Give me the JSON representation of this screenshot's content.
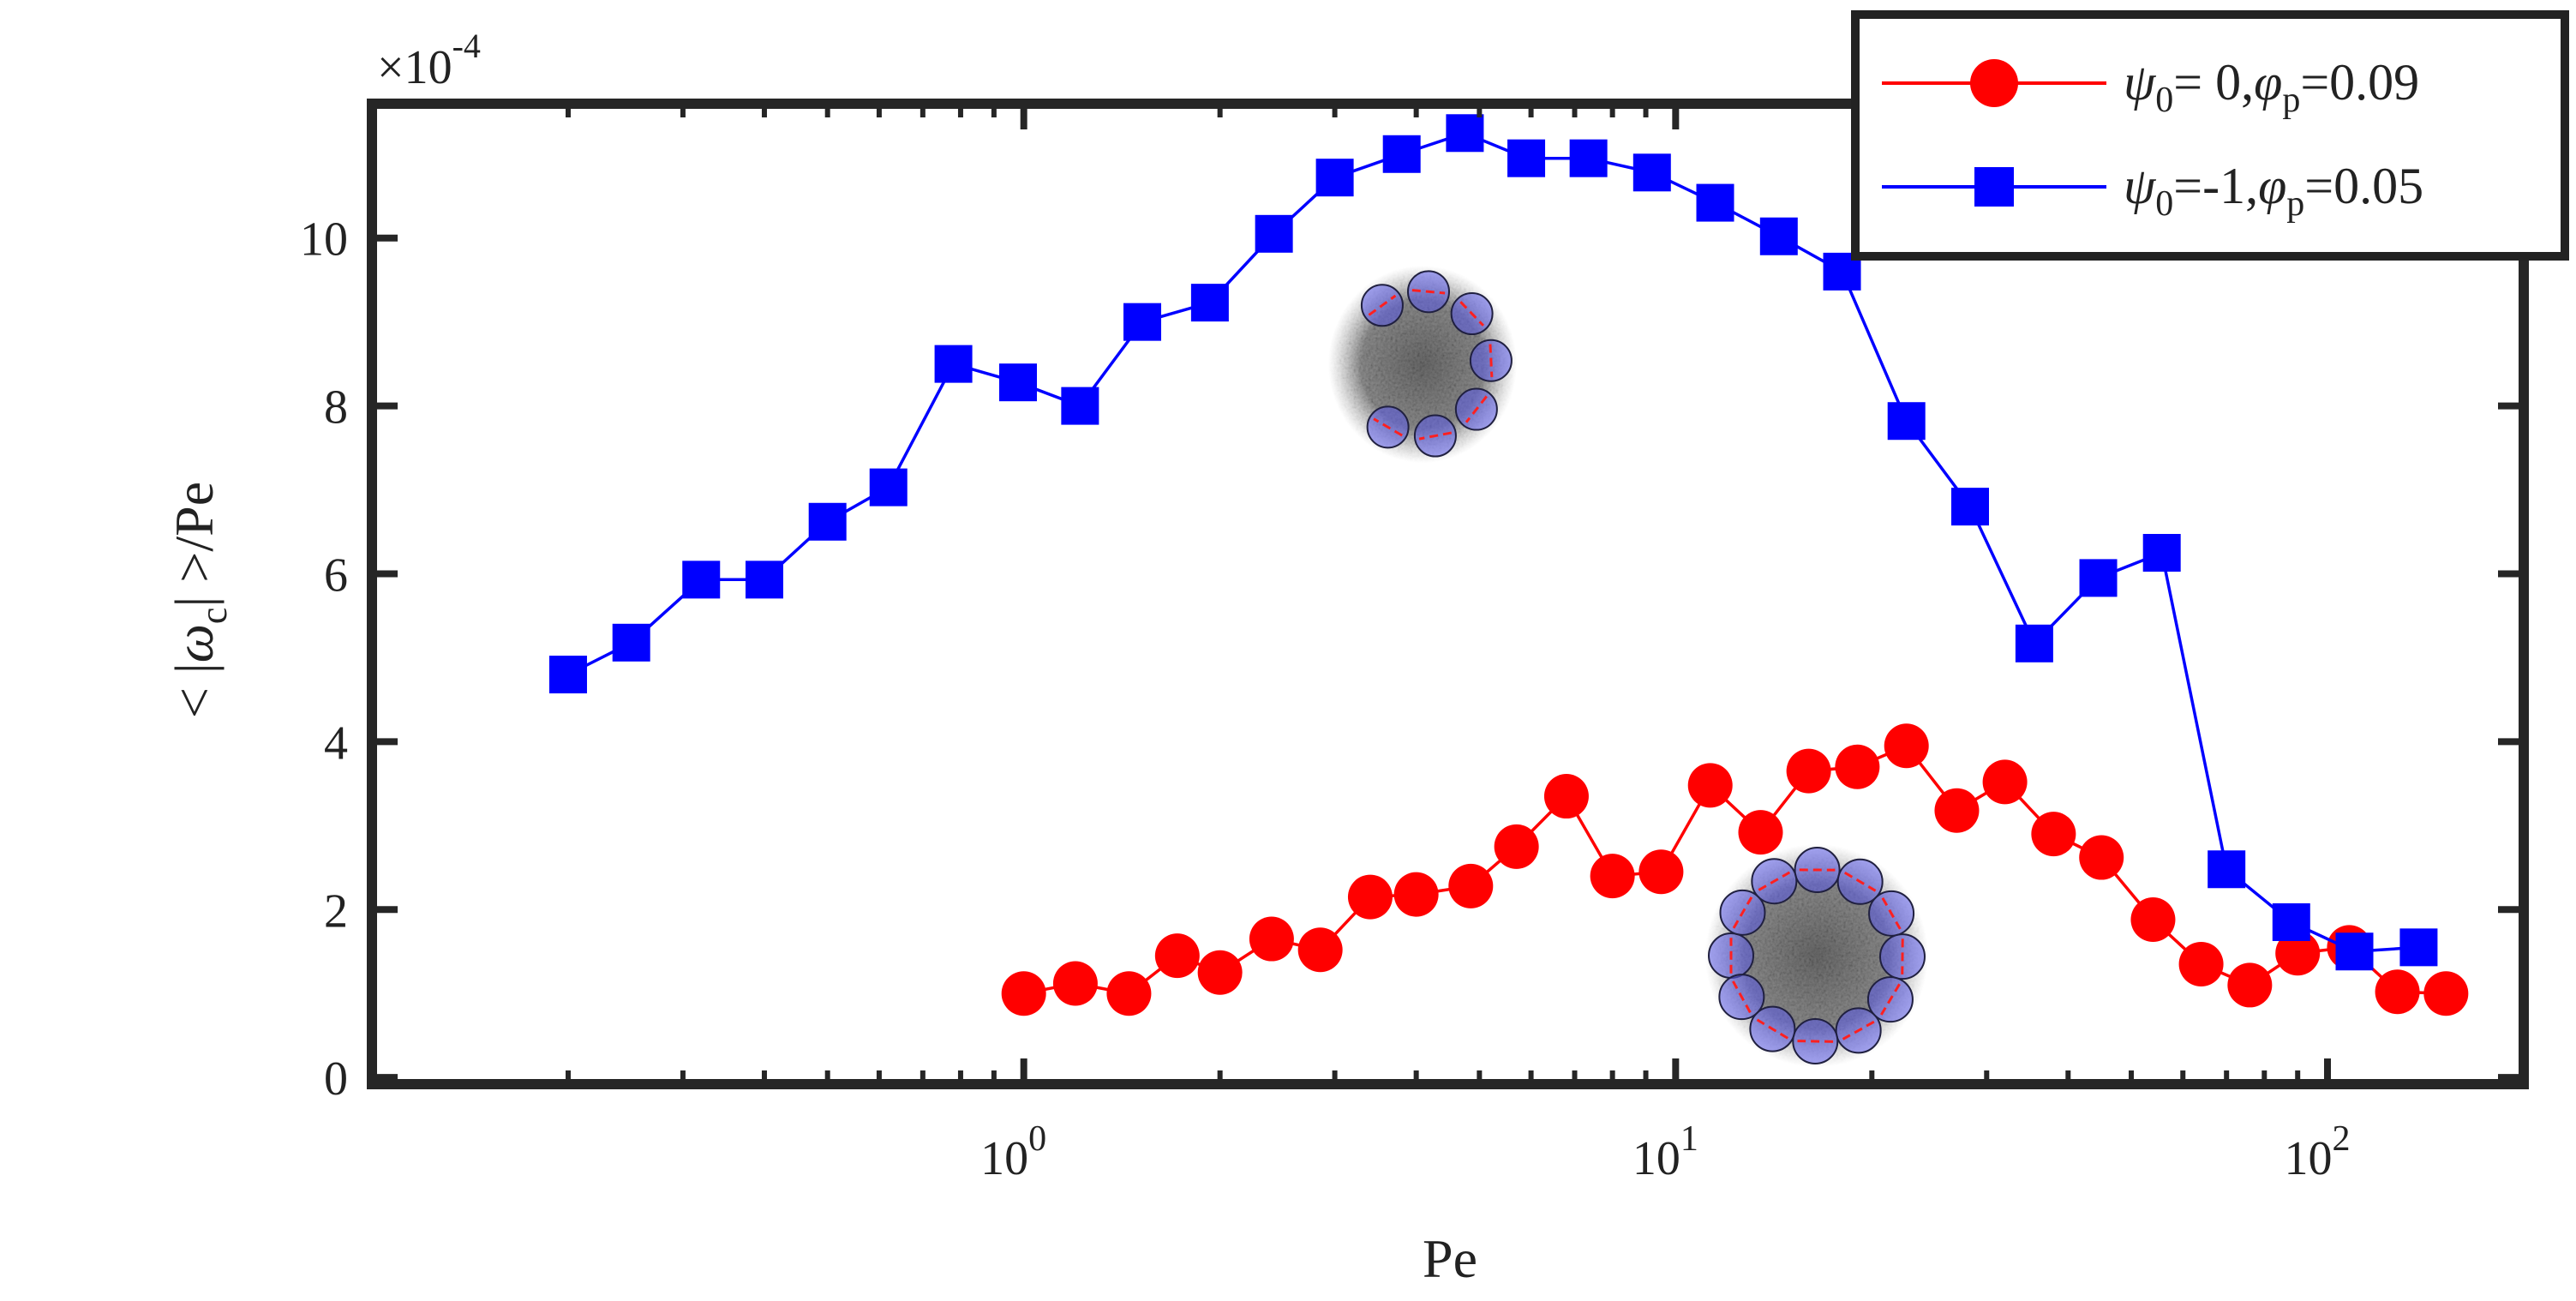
{
  "chart_data": {
    "type": "line",
    "xscale": "log",
    "xlabel": "Pe",
    "ylabel": "< |ω_c| >/Pe",
    "ylabel_parts": {
      "prefix": "< |",
      "symbol": "ω",
      "subscript": "c",
      "suffix": "| >/Pe"
    },
    "y_multiplier": "×10",
    "y_multiplier_exp": "-4",
    "xlim": [
      0.1,
      200
    ],
    "ylim": [
      -0.08,
      11.6
    ],
    "x_ticks": [
      1,
      10,
      100
    ],
    "x_tick_labels": [
      {
        "base": "10",
        "exp": "0"
      },
      {
        "base": "10",
        "exp": "1"
      },
      {
        "base": "10",
        "exp": "2"
      }
    ],
    "y_ticks": [
      0,
      2,
      4,
      6,
      8,
      10
    ],
    "y_tick_labels": [
      "0",
      "2",
      "4",
      "6",
      "8",
      "10"
    ],
    "legend_position": "top-right",
    "series": [
      {
        "name": "ψ0= 0,φp=0.09",
        "legend": {
          "psi": "ψ",
          "psi_sub": "0",
          "eq1": "= 0,",
          "phi": "φ",
          "phi_sub": "p",
          "eq2": "=0.09"
        },
        "color": "#ff0000",
        "marker": "circle",
        "x": [
          1.0,
          1.2,
          1.45,
          1.72,
          2.0,
          2.4,
          2.85,
          3.4,
          4.0,
          4.85,
          5.7,
          6.8,
          8.0,
          9.5,
          11.3,
          13.5,
          16.0,
          19.0,
          22.6,
          27.0,
          32.0,
          38.0,
          45.0,
          54.0,
          64.0,
          76.0,
          90.0,
          108.0,
          128.0,
          152.0
        ],
        "y": [
          1.0,
          1.12,
          1.0,
          1.45,
          1.25,
          1.65,
          1.52,
          2.15,
          2.18,
          2.28,
          2.75,
          3.35,
          2.4,
          2.45,
          3.48,
          2.92,
          3.65,
          3.7,
          3.95,
          3.18,
          3.52,
          2.9,
          2.62,
          1.88,
          1.35,
          1.1,
          1.48,
          1.55,
          1.02,
          1.0
        ]
      },
      {
        "name": "ψ0=-1,φp=0.05",
        "legend": {
          "psi": "ψ",
          "psi_sub": "0",
          "eq1": "=-1,",
          "phi": "φ",
          "phi_sub": "p",
          "eq2": "=0.05"
        },
        "color": "#0000ff",
        "marker": "square",
        "x": [
          0.2,
          0.25,
          0.32,
          0.4,
          0.5,
          0.62,
          0.78,
          0.98,
          1.22,
          1.52,
          1.93,
          2.42,
          3.0,
          3.8,
          4.75,
          5.9,
          7.35,
          9.2,
          11.5,
          14.4,
          18.0,
          22.6,
          28.3,
          35.5,
          44.5,
          55.7,
          70.0,
          88.0,
          110.0,
          138.0
        ],
        "y": [
          4.8,
          5.18,
          5.93,
          5.93,
          6.62,
          7.03,
          8.5,
          8.28,
          8.0,
          9.0,
          9.23,
          10.05,
          10.72,
          11.0,
          11.25,
          10.95,
          10.95,
          10.78,
          10.42,
          10.02,
          9.6,
          7.82,
          6.8,
          5.17,
          5.95,
          6.25,
          2.48,
          1.85,
          1.5,
          1.55
        ]
      }
    ],
    "insets": [
      {
        "near_series": "ψ0=-1,φp=0.05",
        "description": "cluster snapshot",
        "ring_particles": 7
      },
      {
        "near_series": "ψ0= 0,φp=0.09",
        "description": "cluster snapshot",
        "ring_particles": 12
      }
    ]
  }
}
